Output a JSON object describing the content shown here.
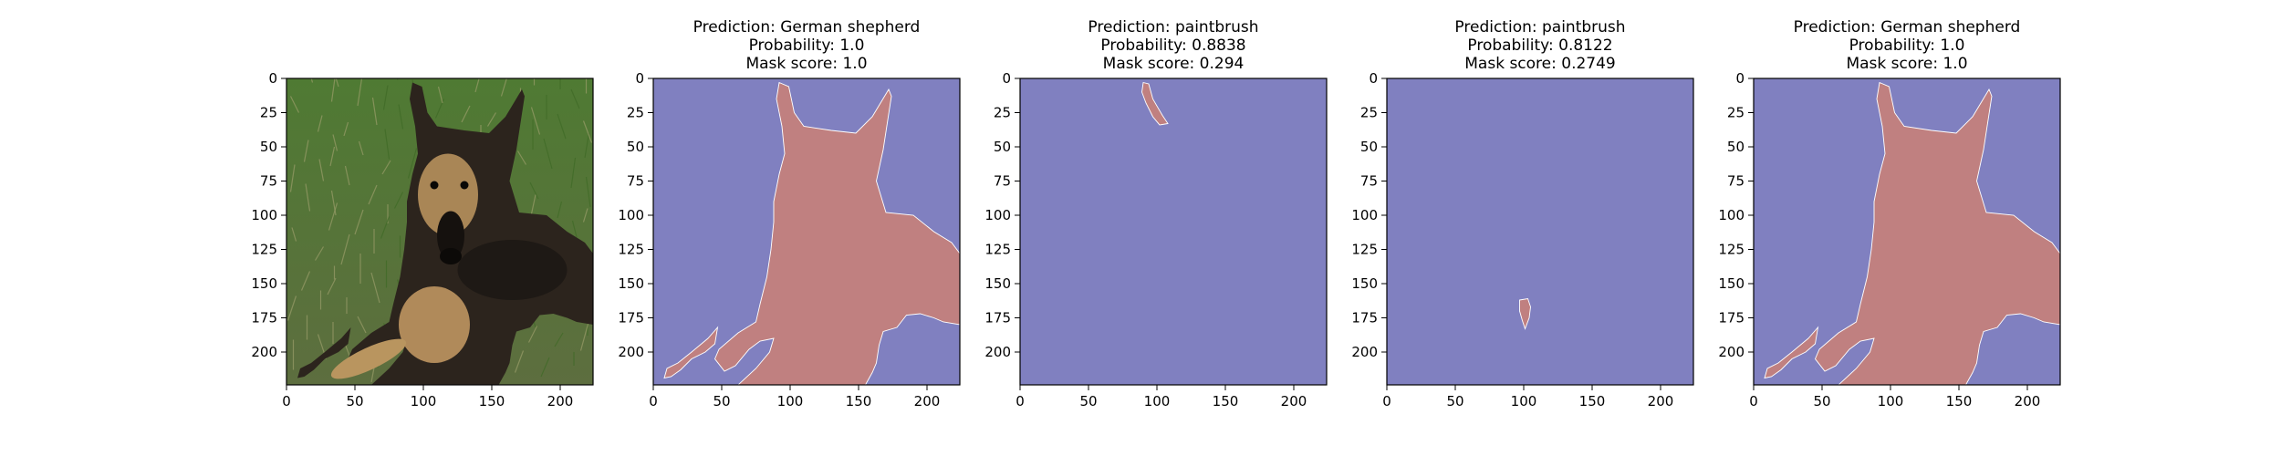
{
  "figure": {
    "panels": [
      {
        "id": "original",
        "kind": "photo",
        "image_alt": "German shepherd lying on grass",
        "title_lines": []
      },
      {
        "id": "mask-1",
        "kind": "mask",
        "mask_shape": "dog",
        "title_lines": [
          "Prediction: German shepherd",
          "Probability: 1.0",
          "Mask score: 1.0"
        ]
      },
      {
        "id": "mask-2",
        "kind": "mask",
        "mask_shape": "ear-tip",
        "title_lines": [
          "Prediction: paintbrush",
          "Probability: 0.8838",
          "Mask score: 0.294"
        ]
      },
      {
        "id": "mask-3",
        "kind": "mask",
        "mask_shape": "small-blob",
        "title_lines": [
          "Prediction: paintbrush",
          "Probability: 0.8122",
          "Mask score: 0.2749"
        ]
      },
      {
        "id": "mask-4",
        "kind": "mask",
        "mask_shape": "dog",
        "title_lines": [
          "Prediction: German shepherd",
          "Probability: 1.0",
          "Mask score: 1.0"
        ]
      }
    ],
    "axes": {
      "xticks": [
        "0",
        "50",
        "100",
        "150",
        "200"
      ],
      "yticks": [
        "0",
        "25",
        "50",
        "75",
        "100",
        "125",
        "150",
        "175",
        "200"
      ],
      "pixel_range": [
        0,
        224
      ]
    },
    "colors": {
      "background_class": "#8080c0",
      "foreground_class": "#c08080",
      "mask_edge": "#ffffff"
    }
  }
}
